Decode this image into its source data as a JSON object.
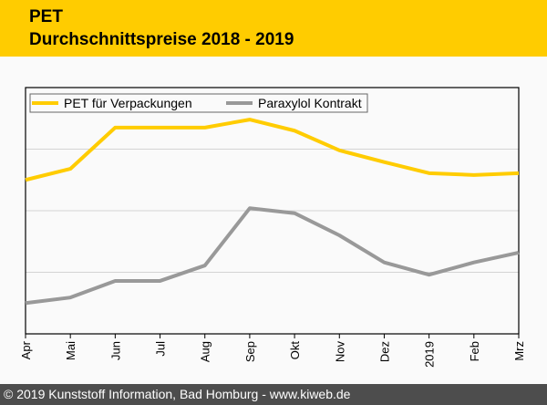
{
  "header": {
    "title": "PET",
    "subtitle": "Durchschnittspreise 2018 - 2019"
  },
  "footer": "© 2019 Kunststoff Information, Bad Homburg - www.kiweb.de",
  "chart_data": {
    "type": "line",
    "categories": [
      "Apr",
      "Mai",
      "Jun",
      "Jul",
      "Aug",
      "Sep",
      "Okt",
      "Nov",
      "Dez",
      "2019",
      "Feb",
      "Mrz"
    ],
    "ylim": [
      0,
      4
    ],
    "grid": true,
    "legend": "top-left",
    "series": [
      {
        "name": "PET für Verpackungen",
        "color": "#ffcc00",
        "values": [
          2.5,
          2.68,
          3.35,
          3.35,
          3.35,
          3.48,
          3.3,
          2.98,
          2.79,
          2.61,
          2.58,
          2.61
        ]
      },
      {
        "name": "Paraxylol Kontrakt",
        "color": "#999999",
        "values": [
          0.5,
          0.59,
          0.86,
          0.86,
          1.11,
          2.04,
          1.96,
          1.6,
          1.16,
          0.96,
          1.16,
          1.32
        ]
      }
    ]
  }
}
